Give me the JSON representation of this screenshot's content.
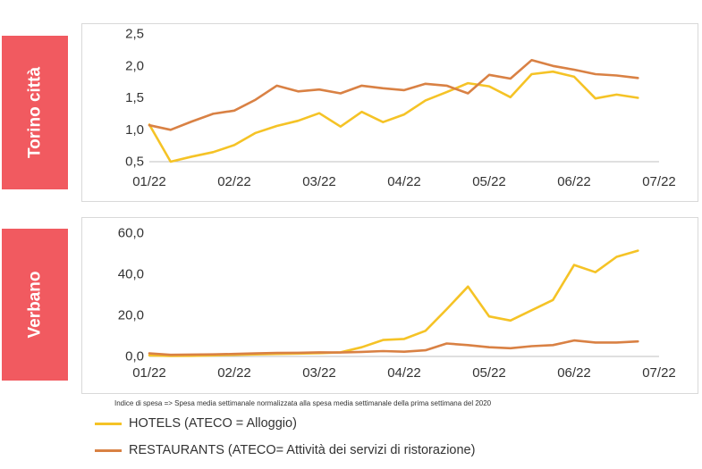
{
  "colors": {
    "hotels": "#f5c326",
    "restaurants": "#d98144",
    "label_bg": "#f15a60"
  },
  "note": "Indice di spesa => Spesa media settimanale  normalizzata alla spesa media settimanale  della prima settimana  del 2020",
  "legend": [
    {
      "label": "HOTELS (ATECO = Alloggio)",
      "color": "#f5c326"
    },
    {
      "label": "RESTAURANTS (ATECO= Attività dei servizi di ristorazione)",
      "color": "#d98144"
    }
  ],
  "chart_data": [
    {
      "type": "line",
      "panel_label": "Torino città",
      "x_ticks": [
        "01/22",
        "02/22",
        "03/22",
        "04/22",
        "05/22",
        "06/22",
        "07/22"
      ],
      "y_ticks": [
        "0,5",
        "1,0",
        "1,5",
        "2,0",
        "2,5"
      ],
      "ylim": [
        0.5,
        2.5
      ],
      "xlim": [
        0,
        6
      ],
      "grid": false,
      "series": [
        {
          "name": "HOTELS (ATECO = Alloggio)",
          "color": "#f5c326",
          "x": [
            0,
            0.25,
            0.5,
            0.75,
            1,
            1.25,
            1.5,
            1.75,
            2,
            2.25,
            2.5,
            2.75,
            3,
            3.25,
            3.5,
            3.75,
            4,
            4.25,
            4.5,
            4.75,
            5,
            5.25,
            5.5,
            5.75
          ],
          "y": [
            1.08,
            0.5,
            0.58,
            0.65,
            0.76,
            0.95,
            1.06,
            1.14,
            1.26,
            1.05,
            1.28,
            1.12,
            1.24,
            1.46,
            1.59,
            1.73,
            1.68,
            1.51,
            1.87,
            1.91,
            1.83,
            1.49,
            1.55,
            1.5
          ]
        },
        {
          "name": "RESTAURANTS (ATECO= Attività dei servizi di ristorazione)",
          "color": "#d98144",
          "x": [
            0,
            0.25,
            0.5,
            0.75,
            1,
            1.25,
            1.5,
            1.75,
            2,
            2.25,
            2.5,
            2.75,
            3,
            3.25,
            3.5,
            3.75,
            4,
            4.25,
            4.5,
            4.75,
            5,
            5.25,
            5.5,
            5.75
          ],
          "y": [
            1.07,
            1.0,
            1.13,
            1.25,
            1.3,
            1.47,
            1.69,
            1.6,
            1.63,
            1.57,
            1.69,
            1.65,
            1.62,
            1.72,
            1.69,
            1.57,
            1.86,
            1.8,
            2.09,
            2.0,
            1.94,
            1.87,
            1.85,
            1.81
          ]
        }
      ]
    },
    {
      "type": "line",
      "panel_label": "Verbano",
      "x_ticks": [
        "01/22",
        "02/22",
        "03/22",
        "04/22",
        "05/22",
        "06/22",
        "07/22"
      ],
      "y_ticks": [
        "0,0",
        "20,0",
        "40,0",
        "60,0"
      ],
      "ylim": [
        0,
        60
      ],
      "xlim": [
        0,
        6
      ],
      "grid": false,
      "series": [
        {
          "name": "HOTELS (ATECO = Alloggio)",
          "color": "#f5c326",
          "x": [
            0,
            0.25,
            0.5,
            0.75,
            1,
            1.25,
            1.5,
            1.75,
            2,
            2.25,
            2.5,
            2.75,
            3,
            3.25,
            3.5,
            3.75,
            4,
            4.25,
            4.5,
            4.75,
            5,
            5.25,
            5.5,
            5.75
          ],
          "y": [
            0.5,
            0.2,
            0.3,
            0.5,
            0.8,
            1.0,
            1.2,
            1.4,
            1.6,
            2.0,
            4.5,
            8.0,
            8.5,
            12.5,
            23.0,
            34.0,
            19.5,
            17.5,
            22.5,
            27.5,
            44.5,
            41.0,
            48.5,
            51.5
          ]
        },
        {
          "name": "RESTAURANTS (ATECO= Attività dei servizi di ristorazione)",
          "color": "#d98144",
          "x": [
            0,
            0.25,
            0.5,
            0.75,
            1,
            1.25,
            1.5,
            1.75,
            2,
            2.25,
            2.5,
            2.75,
            3,
            3.25,
            3.5,
            3.75,
            4,
            4.25,
            4.5,
            4.75,
            5,
            5.25,
            5.5,
            5.75
          ],
          "y": [
            1.5,
            0.8,
            0.9,
            1.0,
            1.2,
            1.5,
            1.7,
            1.8,
            2.0,
            1.9,
            2.2,
            2.6,
            2.3,
            3.0,
            6.3,
            5.5,
            4.5,
            4.0,
            5.0,
            5.5,
            7.8,
            6.8,
            6.8,
            7.3
          ]
        }
      ]
    }
  ]
}
